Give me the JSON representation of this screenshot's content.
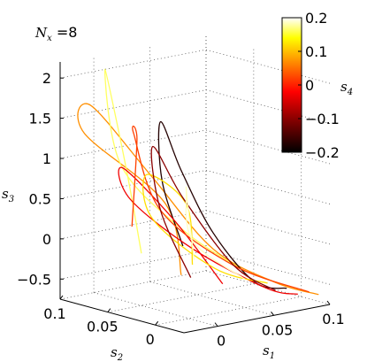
{
  "chart_data": {
    "type": "line",
    "title": "",
    "annotation": {
      "symbol": "N",
      "subscript": "x",
      "text": " =8"
    },
    "plot3d": true,
    "axes": {
      "s1": {
        "symbol": "s",
        "subscript": "1",
        "range": [
          -0.03,
          0.1
        ],
        "ticks": [
          0,
          0.05,
          0.1
        ],
        "tick_labels": [
          "0",
          "0.05",
          "0.1"
        ]
      },
      "s2": {
        "symbol": "s",
        "subscript": "2",
        "range": [
          -0.03,
          0.1
        ],
        "ticks": [
          0.1,
          0.05,
          0
        ],
        "tick_labels": [
          "0.1",
          "0.05",
          "0"
        ]
      },
      "s3": {
        "symbol": "s",
        "subscript": "3",
        "range": [
          -0.75,
          2.2
        ],
        "ticks": [
          -0.5,
          0,
          0.5,
          1,
          1.5,
          2
        ],
        "tick_labels": [
          "−0.5",
          "0",
          "0.5",
          "1",
          "1.5",
          "2"
        ]
      }
    },
    "colorbar": {
      "symbol": "s",
      "subscript": "4",
      "range": [
        -0.2,
        0.2
      ],
      "ticks": [
        0.2,
        0.1,
        0,
        -0.1,
        -0.2
      ],
      "tick_labels": [
        "0.2",
        "0.1",
        "0",
        "−0.1",
        "−0.2"
      ],
      "colormap": "hot",
      "colors": [
        "#000000",
        "#8b0000",
        "#ff0000",
        "#ff7f00",
        "#ffff00",
        "#ffffff"
      ]
    },
    "grid": true,
    "series": [
      {
        "color_value": 0.05,
        "points": [
          [
            0.01,
            0.02,
            -0.3
          ],
          [
            0.03,
            0.06,
            0.4
          ],
          [
            0.0,
            0.11,
            1.2
          ],
          [
            -0.02,
            0.08,
            1.7
          ],
          [
            0.0,
            0.04,
            0.9
          ],
          [
            0.03,
            0.01,
            0.0
          ],
          [
            0.06,
            -0.02,
            -0.4
          ],
          [
            0.09,
            -0.03,
            -0.6
          ]
        ]
      },
      {
        "color_value": 0.15,
        "points": [
          [
            0.0,
            0.05,
            -0.1
          ],
          [
            0.02,
            0.09,
            0.8
          ],
          [
            0.01,
            0.1,
            2.0
          ],
          [
            -0.01,
            0.06,
            1.0
          ],
          [
            0.02,
            0.03,
            0.2
          ],
          [
            0.05,
            0.0,
            -0.3
          ]
        ]
      },
      {
        "color_value": -0.18,
        "points": [
          [
            0.02,
            0.03,
            0.0
          ],
          [
            0.01,
            0.04,
            0.8
          ],
          [
            0.0,
            0.03,
            1.6
          ],
          [
            0.01,
            0.02,
            1.0
          ],
          [
            0.03,
            0.01,
            0.2
          ],
          [
            0.05,
            -0.01,
            -0.4
          ],
          [
            0.07,
            -0.02,
            -0.5
          ]
        ]
      },
      {
        "color_value": -0.05,
        "points": [
          [
            0.03,
            0.0,
            -0.4
          ],
          [
            0.02,
            0.04,
            0.3
          ],
          [
            0.0,
            0.07,
            0.9
          ],
          [
            -0.01,
            0.05,
            0.6
          ],
          [
            0.02,
            0.02,
            0.0
          ],
          [
            0.06,
            -0.01,
            -0.5
          ],
          [
            0.08,
            -0.02,
            -0.6
          ]
        ]
      },
      {
        "color_value": 0.0,
        "points": [
          [
            0.0,
            0.06,
            0.2
          ],
          [
            0.03,
            0.09,
            1.1
          ],
          [
            0.01,
            0.07,
            1.3
          ],
          [
            0.0,
            0.03,
            0.5
          ],
          [
            0.04,
            0.0,
            -0.2
          ],
          [
            0.09,
            -0.02,
            -0.6
          ]
        ]
      },
      {
        "color_value": 0.1,
        "points": [
          [
            0.02,
            0.02,
            -0.2
          ],
          [
            0.04,
            0.05,
            0.4
          ],
          [
            0.03,
            0.08,
            0.7
          ],
          [
            0.01,
            0.05,
            0.3
          ],
          [
            0.04,
            0.02,
            -0.3
          ],
          [
            0.07,
            0.0,
            -0.5
          ]
        ]
      },
      {
        "color_value": -0.12,
        "points": [
          [
            0.01,
            0.01,
            -0.3
          ],
          [
            0.0,
            0.03,
            0.5
          ],
          [
            0.01,
            0.05,
            1.2
          ],
          [
            0.02,
            0.03,
            0.6
          ],
          [
            0.04,
            0.0,
            -0.2
          ],
          [
            0.06,
            -0.02,
            -0.5
          ]
        ]
      },
      {
        "color_value": 0.18,
        "points": [
          [
            0.03,
            0.03,
            -0.2
          ],
          [
            0.05,
            0.06,
            0.3
          ],
          [
            0.04,
            0.05,
            0.6
          ],
          [
            0.02,
            0.02,
            0.1
          ],
          [
            0.05,
            0.0,
            -0.4
          ]
        ]
      }
    ]
  }
}
